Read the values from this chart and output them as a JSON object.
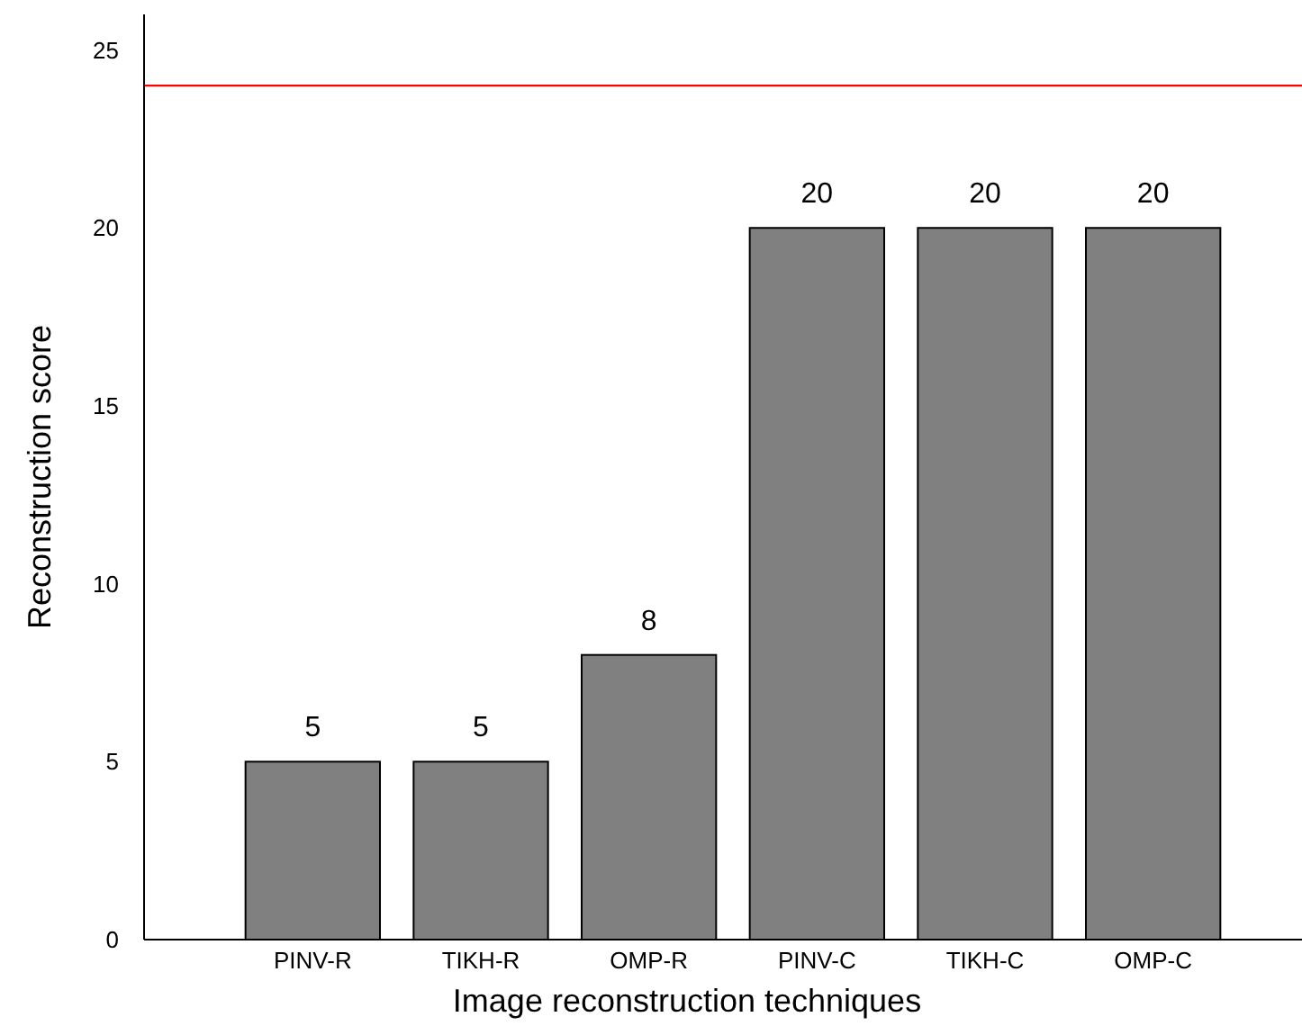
{
  "chart_data": {
    "type": "bar",
    "xlabel": "Image reconstruction techniques",
    "ylabel": "Reconstruction score",
    "categories": [
      "PINV-R",
      "TIKH-R",
      "OMP-R",
      "PINV-C",
      "TIKH-C",
      "OMP-C"
    ],
    "values": [
      5,
      5,
      8,
      20,
      20,
      20
    ],
    "color": "#808080",
    "data_labels": true,
    "ylim": [
      0,
      26
    ],
    "yticks": [
      0,
      5,
      10,
      15,
      20,
      25
    ],
    "grid": false,
    "ref_lines": [
      {
        "axis": "y",
        "value": 24,
        "color": "#ff0000"
      }
    ]
  }
}
